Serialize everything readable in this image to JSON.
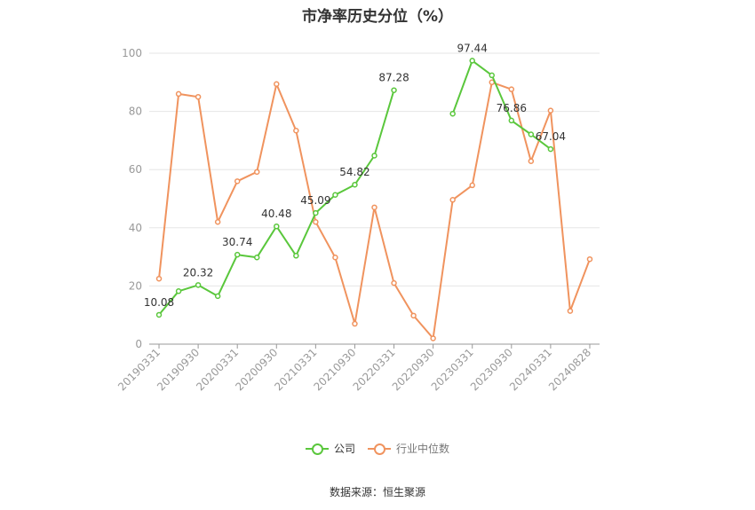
{
  "chart_data": {
    "type": "line",
    "title": "市净率历史分位（%）",
    "xlabel": "",
    "ylabel": "",
    "ylim": [
      0,
      100
    ],
    "yticks": [
      0,
      20,
      40,
      60,
      80,
      100
    ],
    "grid": true,
    "legend_position": "bottom",
    "x_tick_labels": [
      "20190331",
      "20190930",
      "20200331",
      "20200930",
      "20210331",
      "20210930",
      "20220331",
      "20220930",
      "20230331",
      "20230930",
      "20240331",
      "20240828"
    ],
    "series": [
      {
        "name": "公司",
        "color": "#5ac73c",
        "values": [
          10.08,
          18.2,
          20.32,
          16.5,
          30.74,
          29.8,
          40.48,
          30.4,
          45.09,
          51.3,
          54.82,
          64.8,
          87.28,
          null,
          null,
          79.2,
          97.44,
          92.4,
          76.86,
          72.1,
          67.04,
          null,
          null
        ],
        "point_labels": {
          "0": "10.08",
          "2": "20.32",
          "4": "30.74",
          "6": "40.48",
          "8": "45.09",
          "10": "54.82",
          "12": "87.28",
          "16": "97.44",
          "18": "76.86",
          "20": "67.04"
        }
      },
      {
        "name": "行业中位数",
        "color": "#f0935e",
        "values": [
          22.5,
          86.0,
          85.0,
          42.0,
          56.0,
          59.2,
          89.4,
          73.4,
          42.0,
          29.8,
          7.0,
          47.0,
          21.0,
          9.8,
          2.0,
          49.6,
          54.6,
          90.0,
          87.6,
          62.9,
          80.3,
          11.4,
          29.2
        ]
      }
    ]
  },
  "legend": {
    "company": "公司",
    "industry": "行业中位数"
  },
  "source": "数据来源：恒生聚源"
}
